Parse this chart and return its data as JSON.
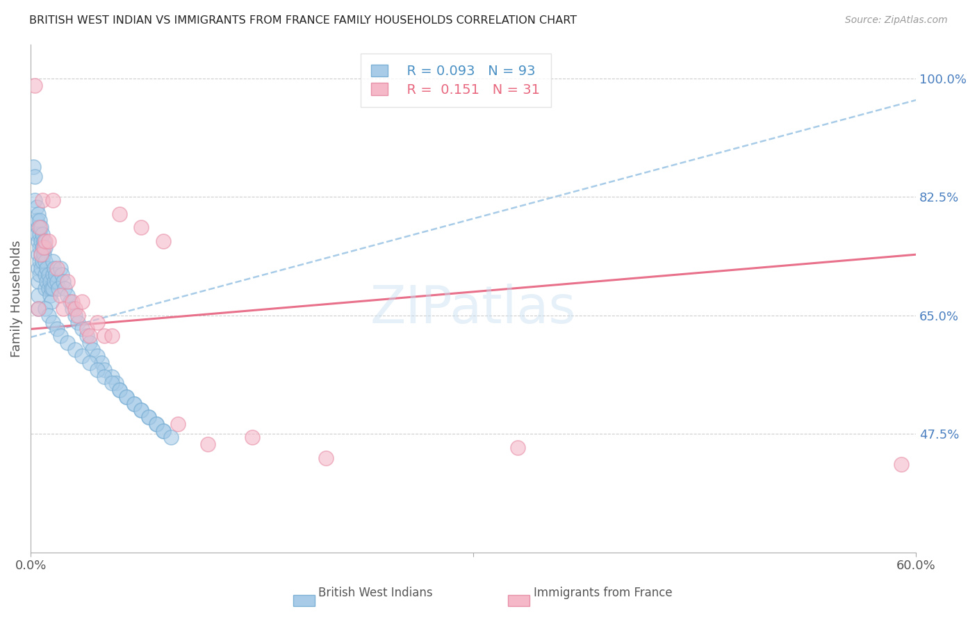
{
  "title": "BRITISH WEST INDIAN VS IMMIGRANTS FROM FRANCE FAMILY HOUSEHOLDS CORRELATION CHART",
  "source": "Source: ZipAtlas.com",
  "ylabel": "Family Households",
  "ytick_vals": [
    1.0,
    0.825,
    0.65,
    0.475
  ],
  "ytick_labels": [
    "100.0%",
    "82.5%",
    "65.0%",
    "47.5%"
  ],
  "xmin": 0.0,
  "xmax": 0.6,
  "ymin": 0.3,
  "ymax": 1.05,
  "blue_color": "#a8cce8",
  "blue_edge_color": "#7bafd4",
  "pink_color": "#f4b8c8",
  "pink_edge_color": "#e890a8",
  "dashed_line_color": "#a8cce8",
  "solid_line_color": "#e8708a",
  "solid_line_dark": "#d45070",
  "watermark": "ZIPatlas",
  "bwi_x": [
    0.002,
    0.003,
    0.003,
    0.004,
    0.004,
    0.004,
    0.005,
    0.005,
    0.005,
    0.005,
    0.005,
    0.005,
    0.005,
    0.005,
    0.006,
    0.006,
    0.006,
    0.006,
    0.006,
    0.007,
    0.007,
    0.007,
    0.007,
    0.008,
    0.008,
    0.008,
    0.009,
    0.009,
    0.01,
    0.01,
    0.01,
    0.01,
    0.011,
    0.011,
    0.012,
    0.012,
    0.013,
    0.013,
    0.014,
    0.014,
    0.015,
    0.015,
    0.015,
    0.016,
    0.016,
    0.017,
    0.018,
    0.019,
    0.02,
    0.021,
    0.022,
    0.023,
    0.025,
    0.027,
    0.028,
    0.03,
    0.032,
    0.035,
    0.038,
    0.04,
    0.042,
    0.045,
    0.048,
    0.05,
    0.055,
    0.058,
    0.06,
    0.065,
    0.07,
    0.075,
    0.08,
    0.085,
    0.09,
    0.01,
    0.012,
    0.015,
    0.018,
    0.02,
    0.025,
    0.03,
    0.035,
    0.04,
    0.045,
    0.05,
    0.055,
    0.06,
    0.065,
    0.07,
    0.075,
    0.08,
    0.085,
    0.09,
    0.095
  ],
  "bwi_y": [
    0.87,
    0.855,
    0.82,
    0.81,
    0.79,
    0.77,
    0.8,
    0.78,
    0.76,
    0.74,
    0.72,
    0.7,
    0.68,
    0.66,
    0.79,
    0.77,
    0.75,
    0.73,
    0.71,
    0.78,
    0.76,
    0.74,
    0.72,
    0.77,
    0.75,
    0.73,
    0.76,
    0.74,
    0.75,
    0.73,
    0.71,
    0.69,
    0.72,
    0.7,
    0.71,
    0.69,
    0.7,
    0.68,
    0.69,
    0.67,
    0.73,
    0.71,
    0.69,
    0.72,
    0.7,
    0.71,
    0.7,
    0.69,
    0.72,
    0.71,
    0.7,
    0.69,
    0.68,
    0.67,
    0.66,
    0.65,
    0.64,
    0.63,
    0.62,
    0.61,
    0.6,
    0.59,
    0.58,
    0.57,
    0.56,
    0.55,
    0.54,
    0.53,
    0.52,
    0.51,
    0.5,
    0.49,
    0.48,
    0.66,
    0.65,
    0.64,
    0.63,
    0.62,
    0.61,
    0.6,
    0.59,
    0.58,
    0.57,
    0.56,
    0.55,
    0.54,
    0.53,
    0.52,
    0.51,
    0.5,
    0.49,
    0.48,
    0.47
  ],
  "fr_x": [
    0.003,
    0.005,
    0.006,
    0.007,
    0.008,
    0.009,
    0.01,
    0.012,
    0.015,
    0.018,
    0.02,
    0.022,
    0.025,
    0.028,
    0.03,
    0.032,
    0.035,
    0.038,
    0.04,
    0.045,
    0.05,
    0.055,
    0.06,
    0.075,
    0.09,
    0.1,
    0.12,
    0.15,
    0.2,
    0.33,
    0.59
  ],
  "fr_y": [
    0.99,
    0.66,
    0.78,
    0.74,
    0.82,
    0.75,
    0.76,
    0.76,
    0.82,
    0.72,
    0.68,
    0.66,
    0.7,
    0.67,
    0.66,
    0.65,
    0.67,
    0.63,
    0.62,
    0.64,
    0.62,
    0.62,
    0.8,
    0.78,
    0.76,
    0.49,
    0.46,
    0.47,
    0.44,
    0.455,
    0.43
  ],
  "bwi_trendline_x": [
    0.0,
    0.6
  ],
  "bwi_trendline_y": [
    0.618,
    0.968
  ],
  "fr_trendline_x": [
    0.0,
    0.6
  ],
  "fr_trendline_y": [
    0.63,
    0.74
  ]
}
